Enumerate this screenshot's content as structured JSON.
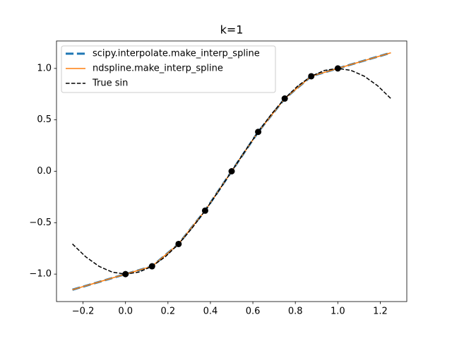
{
  "chart_data": {
    "type": "line",
    "title": "k=1",
    "xlim": [
      -0.325,
      1.325
    ],
    "ylim": [
      -1.267,
      1.267
    ],
    "xticks": [
      {
        "value": -0.2,
        "label": "−0.2"
      },
      {
        "value": 0,
        "label": "0.0"
      },
      {
        "value": 0.2,
        "label": "0.2"
      },
      {
        "value": 0.4,
        "label": "0.4"
      },
      {
        "value": 0.6,
        "label": "0.6"
      },
      {
        "value": 0.8,
        "label": "0.8"
      },
      {
        "value": 1,
        "label": "1.0"
      },
      {
        "value": 1.2,
        "label": "1.2"
      }
    ],
    "yticks": [
      {
        "value": -1,
        "label": "−1.0"
      },
      {
        "value": -0.5,
        "label": "−0.5"
      },
      {
        "value": 0,
        "label": "0.0"
      },
      {
        "value": 0.5,
        "label": "0.5"
      },
      {
        "value": 1,
        "label": "1.0"
      }
    ],
    "legend": "upper left",
    "series": [
      {
        "name": "scipy.interpolate.make_interp_spline",
        "color": "#1f77b4",
        "linestyle": "dashed",
        "linewidth": 3,
        "x": [
          -0.25,
          0,
          0.125,
          0.25,
          0.375,
          0.5,
          0.625,
          0.75,
          0.875,
          1,
          1.25
        ],
        "values": [
          -1.152,
          -1,
          -0.924,
          -0.707,
          -0.383,
          0,
          0.383,
          0.707,
          0.924,
          1,
          1.152
        ]
      },
      {
        "name": "ndspline.make_interp_spline",
        "color": "#ff7f0e",
        "linestyle": "solid",
        "linewidth": 1.5,
        "x": [
          -0.25,
          0,
          0.125,
          0.25,
          0.375,
          0.5,
          0.625,
          0.75,
          0.875,
          1,
          1.25
        ],
        "values": [
          -1.152,
          -1,
          -0.924,
          -0.707,
          -0.383,
          0,
          0.383,
          0.707,
          0.924,
          1,
          1.152
        ]
      },
      {
        "name": "True sin",
        "color": "#000000",
        "linestyle": "dashed",
        "linewidth": 1.5,
        "x": [
          -0.25,
          -0.1875,
          -0.125,
          -0.0625,
          0,
          0.0625,
          0.125,
          0.1875,
          0.25,
          0.3125,
          0.375,
          0.4375,
          0.5,
          0.5625,
          0.625,
          0.6875,
          0.75,
          0.8125,
          0.875,
          0.9375,
          1,
          1.0625,
          1.125,
          1.1875,
          1.25
        ],
        "values": [
          -0.7071,
          -0.8315,
          -0.9239,
          -0.9808,
          -1,
          -0.9808,
          -0.9239,
          -0.8315,
          -0.7071,
          -0.5556,
          -0.3827,
          -0.1951,
          0,
          0.1951,
          0.3827,
          0.5556,
          0.7071,
          0.8315,
          0.9239,
          0.9808,
          1,
          0.9808,
          0.9239,
          0.8315,
          0.7071
        ]
      }
    ],
    "points": {
      "color": "#000000",
      "x": [
        0,
        0.125,
        0.25,
        0.375,
        0.5,
        0.625,
        0.75,
        0.875,
        1
      ],
      "y": [
        -1,
        -0.924,
        -0.707,
        -0.383,
        0,
        0.383,
        0.707,
        0.924,
        1
      ]
    }
  }
}
